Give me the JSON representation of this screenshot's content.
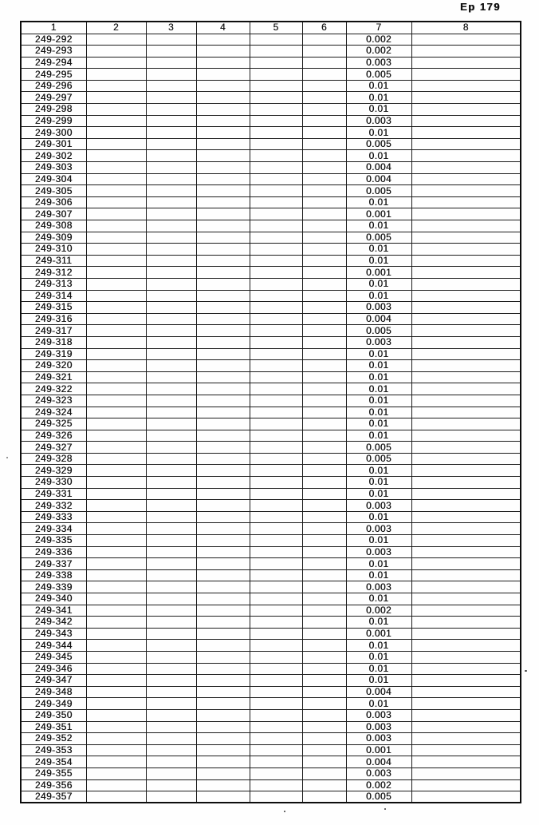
{
  "page": {
    "header_label": "Ep 179",
    "background_color": "#fefefe",
    "ink_color": "#161616",
    "border_color": "#1c1c1c"
  },
  "table": {
    "column_headers": [
      "1",
      "2",
      "3",
      "4",
      "5",
      "6",
      "7",
      "8"
    ],
    "value_column_index": 7,
    "rows": [
      {
        "label": "249-292",
        "value": "0.002"
      },
      {
        "label": "249-293",
        "value": "0.002"
      },
      {
        "label": "249-294",
        "value": "0.003"
      },
      {
        "label": "249-295",
        "value": "0.005"
      },
      {
        "label": "249-296",
        "value": "0.01"
      },
      {
        "label": "249-297",
        "value": "0.01"
      },
      {
        "label": "249-298",
        "value": "0.01"
      },
      {
        "label": "249-299",
        "value": "0.003"
      },
      {
        "label": "249-300",
        "value": "0.01"
      },
      {
        "label": "249-301",
        "value": "0.005"
      },
      {
        "label": "249-302",
        "value": "0.01"
      },
      {
        "label": "249-303",
        "value": "0.004"
      },
      {
        "label": "249-304",
        "value": "0.004"
      },
      {
        "label": "249-305",
        "value": "0.005"
      },
      {
        "label": "249-306",
        "value": "0.01"
      },
      {
        "label": "249-307",
        "value": "0.001"
      },
      {
        "label": "249-308",
        "value": "0.01"
      },
      {
        "label": "249-309",
        "value": "0.005"
      },
      {
        "label": "249-310",
        "value": "0.01"
      },
      {
        "label": "249-311",
        "value": "0.01"
      },
      {
        "label": "249-312",
        "value": "0.001"
      },
      {
        "label": "249-313",
        "value": "0.01"
      },
      {
        "label": "249-314",
        "value": "0.01"
      },
      {
        "label": "249-315",
        "value": "0.003"
      },
      {
        "label": "249-316",
        "value": "0.004"
      },
      {
        "label": "249-317",
        "value": "0.005"
      },
      {
        "label": "249-318",
        "value": "0.003"
      },
      {
        "label": "249-319",
        "value": "0.01"
      },
      {
        "label": "249-320",
        "value": "0.01"
      },
      {
        "label": "249-321",
        "value": "0.01"
      },
      {
        "label": "249-322",
        "value": "0.01"
      },
      {
        "label": "249-323",
        "value": "0.01"
      },
      {
        "label": "249-324",
        "value": "0.01"
      },
      {
        "label": "249-325",
        "value": "0.01"
      },
      {
        "label": "249-326",
        "value": "0.01"
      },
      {
        "label": "249-327",
        "value": "0.005"
      },
      {
        "label": "249-328",
        "value": "0.005"
      },
      {
        "label": "249-329",
        "value": "0.01"
      },
      {
        "label": "249-330",
        "value": "0.01"
      },
      {
        "label": "249-331",
        "value": "0.01"
      },
      {
        "label": "249-332",
        "value": "0.003"
      },
      {
        "label": "249-333",
        "value": "0.01"
      },
      {
        "label": "249-334",
        "value": "0.003"
      },
      {
        "label": "249-335",
        "value": "0.01"
      },
      {
        "label": "249-336",
        "value": "0.003"
      },
      {
        "label": "249-337",
        "value": "0.01"
      },
      {
        "label": "249-338",
        "value": "0.01"
      },
      {
        "label": "249-339",
        "value": "0.003"
      },
      {
        "label": "249-340",
        "value": "0.01"
      },
      {
        "label": "249-341",
        "value": "0.002"
      },
      {
        "label": "249-342",
        "value": "0.01"
      },
      {
        "label": "249-343",
        "value": "0.001"
      },
      {
        "label": "249-344",
        "value": "0.01"
      },
      {
        "label": "249-345",
        "value": "0.01"
      },
      {
        "label": "249-346",
        "value": "0.01"
      },
      {
        "label": "249-347",
        "value": "0.01"
      },
      {
        "label": "249-348",
        "value": "0.004"
      },
      {
        "label": "249-349",
        "value": "0.01"
      },
      {
        "label": "249-350",
        "value": "0.003"
      },
      {
        "label": "249-351",
        "value": "0.003"
      },
      {
        "label": "249-352",
        "value": "0.003"
      },
      {
        "label": "249-353",
        "value": "0.001"
      },
      {
        "label": "249-354",
        "value": "0.004"
      },
      {
        "label": "249-355",
        "value": "0.003"
      },
      {
        "label": "249-356",
        "value": "0.002"
      },
      {
        "label": "249-357",
        "value": "0.005"
      }
    ]
  }
}
